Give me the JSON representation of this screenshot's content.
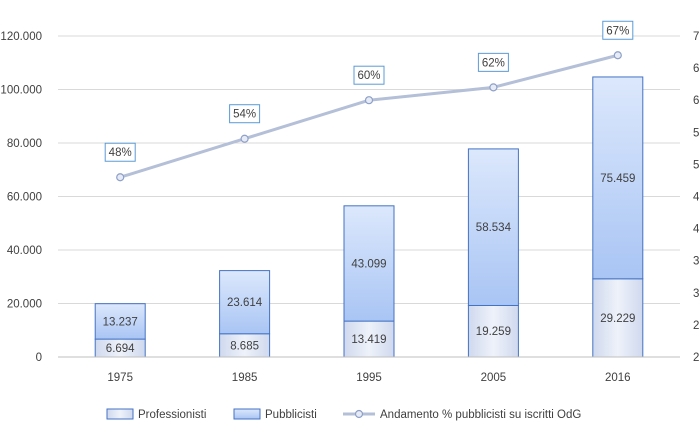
{
  "chart_data": {
    "type": "bar",
    "stacked": true,
    "categories": [
      "1975",
      "1985",
      "1995",
      "2005",
      "2016"
    ],
    "series": [
      {
        "name": "Professionisti",
        "values": [
          6694,
          8685,
          13419,
          19259,
          29229
        ],
        "labels": [
          "6.694",
          "8.685",
          "13.419",
          "19.259",
          "29.229"
        ],
        "color": "#dfe6f5"
      },
      {
        "name": "Pubblicisti",
        "values": [
          13237,
          23614,
          43099,
          58534,
          75459
        ],
        "labels": [
          "13.237",
          "23.614",
          "43.099",
          "58.534",
          "75.459"
        ],
        "color": "#bdd3f8"
      },
      {
        "name": "Andamento % pubblicisti su iscritti OdG",
        "type": "line",
        "axis": "secondary",
        "values": [
          48,
          54,
          60,
          62,
          67
        ],
        "labels": [
          "48%",
          "54%",
          "60%",
          "62%",
          "67%"
        ],
        "color": "#b4bfd8"
      }
    ],
    "y_axis": {
      "min": 0,
      "max": 120000,
      "step": 20000,
      "tick_labels": [
        "0",
        "20.000",
        "40.000",
        "60.000",
        "80.000",
        "100.000",
        "120.000"
      ]
    },
    "y2_axis": {
      "min": 20,
      "max": 70,
      "step": 5,
      "tick_labels": [
        "2",
        "2",
        "3",
        "3",
        "4",
        "4",
        "5",
        "5",
        "6",
        "6",
        "7"
      ]
    },
    "grid": true,
    "legend_position": "bottom",
    "title": "",
    "xlabel": "",
    "ylabel": ""
  }
}
